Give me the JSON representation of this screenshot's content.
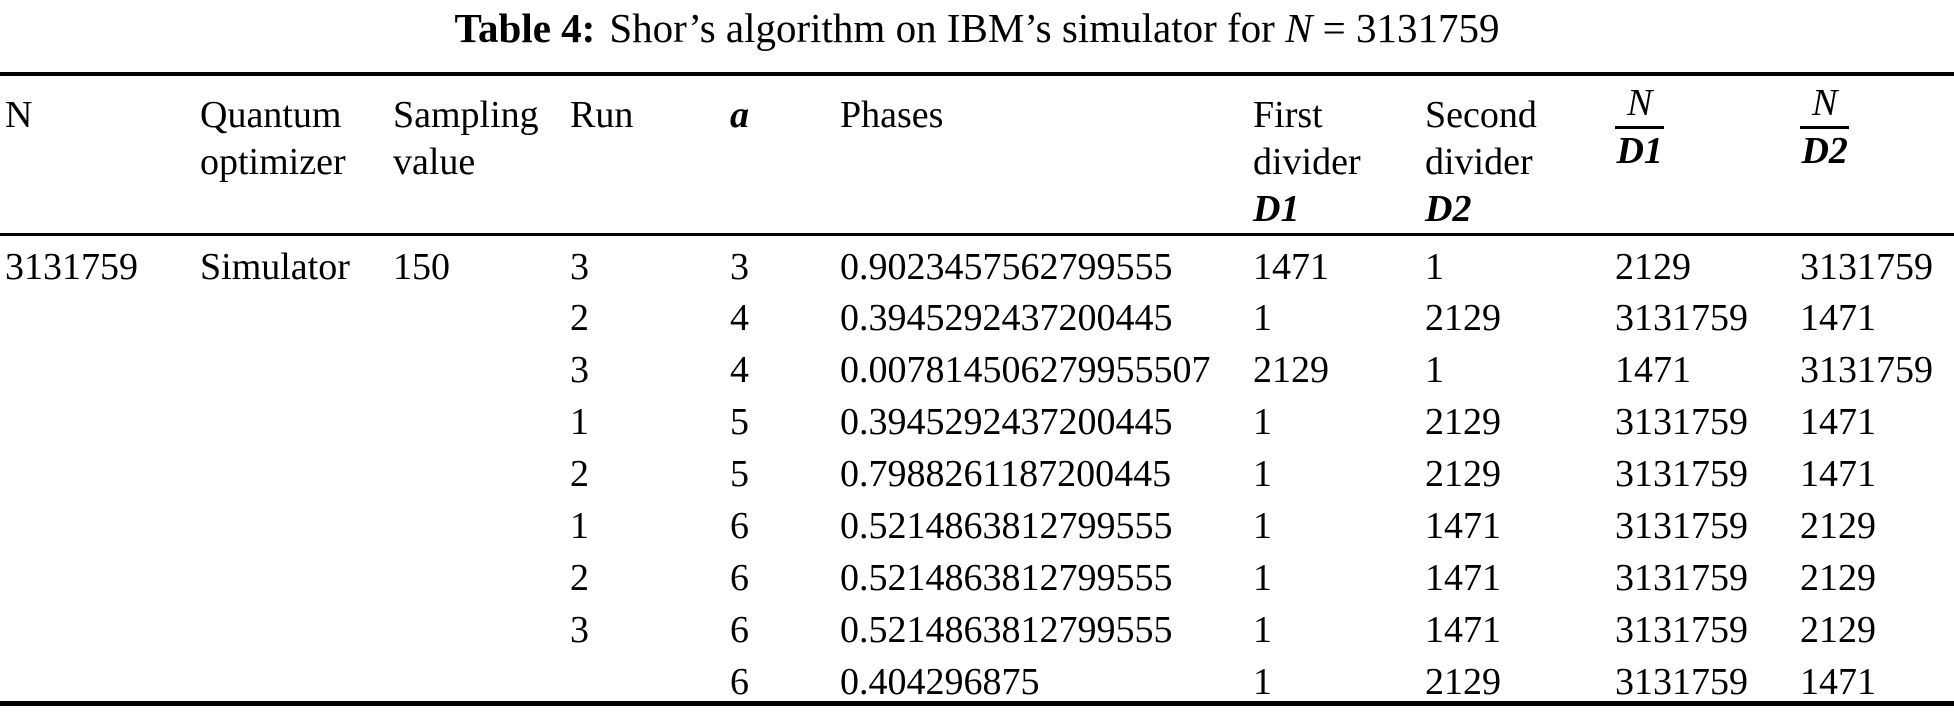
{
  "caption": {
    "label": "Table 4:",
    "text": "Shor’s algorithm on IBM’s simulator for ",
    "variable": "N",
    "tail": " = 3131759"
  },
  "table": {
    "column_names": [
      "n",
      "quantum-optimizer",
      "sampling-value",
      "run",
      "a",
      "phases",
      "first-divider-d1",
      "second-divider-d2",
      "n-over-d1",
      "n-over-d2"
    ],
    "headers": {
      "n": "N",
      "optimizer_line1": "Quantum",
      "optimizer_line2": "optimizer",
      "sampling_line1": "Sampling",
      "sampling_line2": "value",
      "run": "Run",
      "a": "a",
      "phases": "Phases",
      "first_line1": "First",
      "first_line2": "divider",
      "first_line3": "D1",
      "second_line1": "Second",
      "second_line2": "divider",
      "second_line3": "D2",
      "frac1_num": "N",
      "frac1_den": "D1",
      "frac2_num": "N",
      "frac2_den": "D2"
    },
    "rows": [
      [
        "3131759",
        "Simulator",
        "150",
        "3",
        "3",
        "0.9023457562799555",
        "1471",
        "1",
        "2129",
        "3131759"
      ],
      [
        "",
        "",
        "",
        "2",
        "4",
        "0.3945292437200445",
        "1",
        "2129",
        "3131759",
        "1471"
      ],
      [
        "",
        "",
        "",
        "3",
        "4",
        "0.007814506279955507",
        "2129",
        "1",
        "1471",
        "3131759"
      ],
      [
        "",
        "",
        "",
        "1",
        "5",
        "0.3945292437200445",
        "1",
        "2129",
        "3131759",
        "1471"
      ],
      [
        "",
        "",
        "",
        "2",
        "5",
        "0.7988261187200445",
        "1",
        "2129",
        "3131759",
        "1471"
      ],
      [
        "",
        "",
        "",
        "1",
        "6",
        "0.5214863812799555",
        "1",
        "1471",
        "3131759",
        "2129"
      ],
      [
        "",
        "",
        "",
        "2",
        "6",
        "0.5214863812799555",
        "1",
        "1471",
        "3131759",
        "2129"
      ],
      [
        "",
        "",
        "",
        "3",
        "6",
        "0.5214863812799555",
        "1",
        "1471",
        "3131759",
        "2129"
      ],
      [
        "",
        "",
        "",
        "",
        "6",
        "0.404296875",
        "1",
        "2129",
        "3131759",
        "1471"
      ]
    ]
  }
}
